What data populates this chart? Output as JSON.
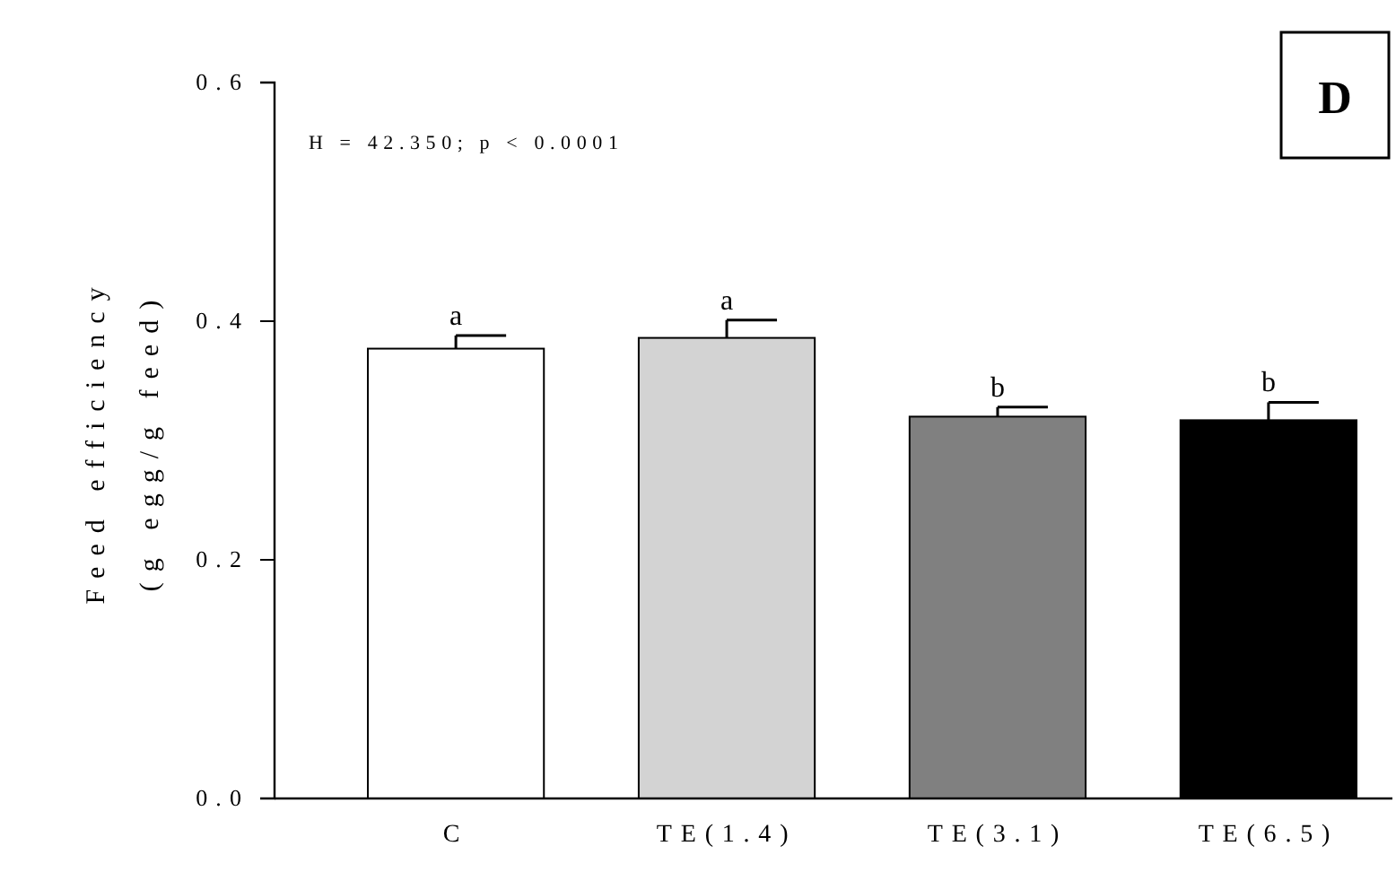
{
  "chart_data": {
    "type": "bar",
    "categories": [
      "C",
      "TE(1.4)",
      "TE(3.1)",
      "TE(6.5)"
    ],
    "values": [
      0.377,
      0.386,
      0.32,
      0.317
    ],
    "colors": [
      "#ffffff",
      "#d3d3d3",
      "#808080",
      "#000000"
    ],
    "errors": [
      [
        0.377,
        0.388
      ],
      [
        0.386,
        0.401
      ],
      [
        0.32,
        0.328
      ],
      [
        0.317,
        0.332
      ]
    ],
    "ylabel": "Feed efficiency\n(g egg/g feed)",
    "ylim": [
      0,
      0.6
    ],
    "yticks": [
      {
        "value": 0,
        "label": "0.0"
      },
      {
        "value": 0.2,
        "label": "0.2"
      },
      {
        "value": 0.4,
        "label": "0.4"
      },
      {
        "value": 0.6,
        "label": "0.6"
      }
    ],
    "grid": false,
    "annotations": [
      {
        "text": "a",
        "x": "C",
        "y": 0.388
      },
      {
        "text": "a",
        "x": "TE(1.4)",
        "y": 0.401
      },
      {
        "text": "b",
        "x": "TE(3.1)",
        "y": 0.328
      },
      {
        "text": "b",
        "x": "TE(6.5)",
        "y": 0.332
      },
      "H = 42.350; p < 0.0001",
      "D"
    ]
  }
}
